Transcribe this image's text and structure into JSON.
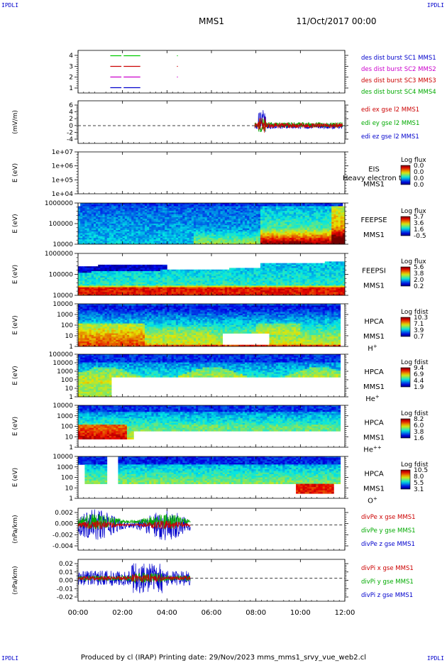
{
  "header": {
    "corner_tl": "IPDLI",
    "corner_tr": "IPDLI",
    "corner_bl": "IPDLI",
    "corner_br": "IPDLI",
    "mission": "MMS1",
    "date": "11/Oct/2017 00:00"
  },
  "footer": "Produced by cl (IRAP)    Printing date: 29/Nov/2023    mms_mms1_srvy_vue_web2.cl",
  "chart_data": {
    "type": "multi-panel time series and spectrograms",
    "x_ticks": [
      "00:00",
      "02:00",
      "04:00",
      "06:00",
      "08:00",
      "10:00",
      "12:00"
    ],
    "x_range_hours": [
      0,
      12
    ],
    "panels": [
      {
        "id": "burst",
        "type": "interval-lines",
        "yticks": [
          "4",
          "3",
          "2",
          "1"
        ],
        "ylim": [
          0.5,
          4.5
        ],
        "legend": [
          {
            "text": "des dist burst SC1 MMS1",
            "color": "#0000cc"
          },
          {
            "text": "des dist burst SC2 MMS2",
            "color": "#cc00cc"
          },
          {
            "text": "des dist burst SC3 MMS3",
            "color": "#cc0000"
          },
          {
            "text": "des dist burst SC4 MMS4",
            "color": "#00aa00"
          }
        ],
        "intervals": [
          {
            "level": 4,
            "color": "#00cc00",
            "spans": [
              [
                1.45,
                1.95
              ],
              [
                2.05,
                2.8
              ]
            ],
            "dots": [
              4.45
            ]
          },
          {
            "level": 3,
            "color": "#cc0000",
            "spans": [
              [
                1.45,
                1.95
              ],
              [
                2.05,
                2.8
              ]
            ],
            "dots": [
              4.45
            ]
          },
          {
            "level": 2,
            "color": "#cc00cc",
            "spans": [
              [
                1.45,
                1.95
              ],
              [
                2.05,
                2.8
              ]
            ],
            "dots": [
              4.45
            ]
          },
          {
            "level": 1,
            "color": "#0000cc",
            "spans": [
              [
                1.45,
                1.95
              ],
              [
                2.05,
                2.8
              ]
            ],
            "dots": []
          }
        ]
      },
      {
        "id": "edi",
        "type": "line",
        "ylabel": "(mV/m)",
        "yticks": [
          "6",
          "4",
          "2",
          "0",
          "-2",
          "-4"
        ],
        "ylim": [
          -5,
          7
        ],
        "legend": [
          {
            "text": "edi ex gse l2 MMS1",
            "color": "#cc0000"
          },
          {
            "text": "edi ey gse l2 MMS1",
            "color": "#00aa00"
          },
          {
            "text": "edi ez gse l2 MMS1",
            "color": "#0000cc"
          }
        ],
        "data_span_hours": [
          7.95,
          11.9
        ],
        "baseline": 0
      },
      {
        "id": "eis",
        "type": "spectrogram",
        "ylabel": "E (eV)",
        "yticks": [
          "1e+07",
          "1e+06",
          "1e+05",
          "1e+04"
        ],
        "ylim_log10": [
          4,
          7
        ],
        "label_lines": [
          "EIS",
          "MMS1"
        ],
        "overlay_text": "Heavy electron to",
        "colorbar": {
          "title": "Log flux",
          "ticks": [
            "0.0",
            "0.0",
            "0.0",
            "0.0"
          ]
        },
        "data_span_hours": []
      },
      {
        "id": "feepse",
        "type": "spectrogram",
        "ylabel": "E (eV)",
        "yticks": [
          "1000000",
          "100000",
          "10000"
        ],
        "ylim_log10": [
          4,
          6
        ],
        "label_lines": [
          "FEEPSE",
          "MMS1"
        ],
        "colorbar": {
          "title": "Log flux",
          "ticks": [
            "5.7",
            "3.6",
            "1.6",
            "-0.5"
          ],
          "range": [
            -0.5,
            5.7
          ]
        },
        "data_span_hours": [
          0,
          12
        ]
      },
      {
        "id": "feepsi",
        "type": "spectrogram",
        "ylabel": "E (eV)",
        "yticks": [
          "1000000",
          "100000",
          "10000"
        ],
        "ylim_log10": [
          4,
          6
        ],
        "label_lines": [
          "FEEPSI",
          "MMS1"
        ],
        "colorbar": {
          "title": "Log flux",
          "ticks": [
            "5.6",
            "3.8",
            "2.0",
            "0.2"
          ],
          "range": [
            0.2,
            5.6
          ]
        },
        "data_span_hours": [
          0,
          12
        ]
      },
      {
        "id": "hpca_h",
        "type": "spectrogram",
        "ylabel": "E (eV)",
        "yticks": [
          "10000",
          "1000",
          "100",
          "10",
          "1"
        ],
        "ylim_log10": [
          0,
          4.3
        ],
        "label_lines": [
          "HPCA",
          "MMS1"
        ],
        "species": "H",
        "species_sup": "+",
        "colorbar": {
          "title": "Log fdist",
          "ticks": [
            "10.3",
            "7.1",
            "3.9",
            "0.7"
          ],
          "range": [
            0.7,
            10.3
          ]
        },
        "data_span_hours": [
          0.05,
          11.75
        ]
      },
      {
        "id": "hpca_he",
        "type": "spectrogram",
        "ylabel": "E (eV)",
        "yticks": [
          "100000",
          "10000",
          "1000",
          "100",
          "10",
          "1"
        ],
        "ylim_log10": [
          0,
          5
        ],
        "label_lines": [
          "HPCA",
          "MMS1"
        ],
        "species": "He",
        "species_sup": "+",
        "colorbar": {
          "title": "Log fdist",
          "ticks": [
            "9.4",
            "6.9",
            "4.4",
            "1.9"
          ],
          "range": [
            1.9,
            9.4
          ]
        },
        "data_span_hours": [
          0.05,
          11.75
        ]
      },
      {
        "id": "hpca_hepp",
        "type": "spectrogram",
        "ylabel": "E (eV)",
        "yticks": [
          "10000",
          "1000",
          "100",
          "10",
          "1"
        ],
        "ylim_log10": [
          0,
          4.3
        ],
        "label_lines": [
          "HPCA",
          "MMS1"
        ],
        "species": "He",
        "species_sup": "++",
        "colorbar": {
          "title": "Log fdist",
          "ticks": [
            "8.2",
            "6.0",
            "3.8",
            "1.6"
          ],
          "range": [
            1.6,
            8.2
          ]
        },
        "data_span_hours": [
          0.05,
          11.75
        ]
      },
      {
        "id": "hpca_o",
        "type": "spectrogram",
        "ylabel": "E (eV)",
        "yticks": [
          "10000",
          "1000",
          "100",
          "10",
          "1"
        ],
        "ylim_log10": [
          0,
          4.3
        ],
        "label_lines": [
          "HPCA",
          "MMS1"
        ],
        "species": "O",
        "species_sup": "+",
        "colorbar": {
          "title": "Log fdist",
          "ticks": [
            "10.5",
            "8.0",
            "5.5",
            "3.1"
          ],
          "range": [
            3.1,
            10.5
          ]
        },
        "data_span_hours": [
          0.05,
          11.75
        ]
      },
      {
        "id": "divpe",
        "type": "line",
        "ylabel": "(nPa/km)",
        "yticks": [
          "0.002",
          "0.000",
          "-0.002",
          "-0.004"
        ],
        "ylim": [
          -0.0045,
          0.003
        ],
        "legend": [
          {
            "text": "divPe x gse MMS1",
            "color": "#cc0000"
          },
          {
            "text": "divPe y gse MMS1",
            "color": "#00aa00"
          },
          {
            "text": "divPe z gse MMS1",
            "color": "#0000cc"
          }
        ],
        "data_span_hours": [
          0,
          5.05
        ],
        "baseline": 0
      },
      {
        "id": "divpi",
        "type": "line",
        "ylabel": "(nPa/km)",
        "yticks": [
          "0.02",
          "0.01",
          "0.00",
          "-0.01",
          "-0.02"
        ],
        "ylim": [
          -0.027,
          0.022
        ],
        "legend": [
          {
            "text": "divPi x gse MMS1",
            "color": "#cc0000"
          },
          {
            "text": "divPi y gse MMS1",
            "color": "#00aa00"
          },
          {
            "text": "divPi z gse MMS1",
            "color": "#0000cc"
          }
        ],
        "data_span_hours": [
          0,
          5.05
        ],
        "baseline": 0
      }
    ]
  }
}
